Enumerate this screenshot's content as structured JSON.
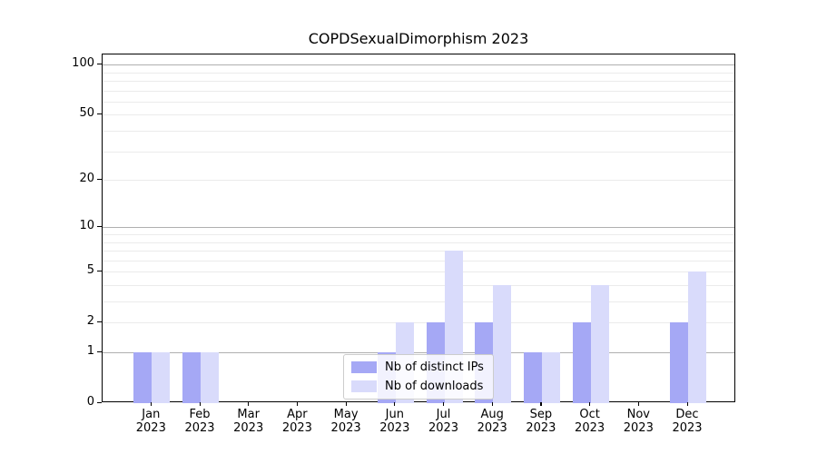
{
  "title": "COPDSexualDimorphism 2023",
  "chart_data": {
    "type": "bar",
    "title": "COPDSexualDimorphism 2023",
    "categories": [
      "Jan 2023",
      "Feb 2023",
      "Mar 2023",
      "Apr 2023",
      "May 2023",
      "Jun 2023",
      "Jul 2023",
      "Aug 2023",
      "Sep 2023",
      "Oct 2023",
      "Nov 2023",
      "Dec 2023"
    ],
    "x_months": [
      "Jan",
      "Feb",
      "Mar",
      "Apr",
      "May",
      "Jun",
      "Jul",
      "Aug",
      "Sep",
      "Oct",
      "Nov",
      "Dec"
    ],
    "x_year": "2023",
    "series": [
      {
        "name": "Nb of distinct IPs",
        "color": "#a5a8f5",
        "values": [
          1,
          1,
          0,
          0,
          0,
          1,
          2,
          2,
          1,
          2,
          0,
          2
        ]
      },
      {
        "name": "Nb of downloads",
        "color": "#d9dbfb",
        "values": [
          1,
          1,
          0,
          0,
          0,
          2,
          7,
          4,
          1,
          4,
          0,
          5
        ]
      }
    ],
    "y_axis": {
      "scale": "log1p",
      "tick_values": [
        0,
        1,
        2,
        5,
        10,
        20,
        50,
        100
      ],
      "major_gridlines": [
        1,
        10,
        100
      ],
      "minor_gridlines": [
        2,
        3,
        4,
        5,
        6,
        7,
        8,
        9,
        20,
        30,
        40,
        50,
        60,
        70,
        80,
        90
      ],
      "ylim": [
        0,
        115
      ]
    },
    "legend": {
      "position": "lower center",
      "entries": [
        "Nb of distinct IPs",
        "Nb of downloads"
      ]
    },
    "grid": true
  },
  "colors": {
    "bar_distinct_ips": "#a5a8f5",
    "bar_downloads": "#d9dbfb",
    "major_gridline": "#b0b0b0",
    "minor_gridline": "#ebebeb",
    "axis": "#000000",
    "background": "#ffffff"
  }
}
